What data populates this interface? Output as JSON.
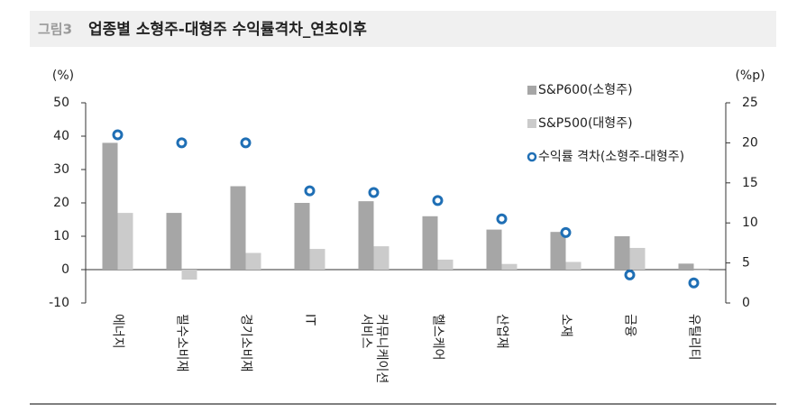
{
  "chart_data": {
    "type": "bar_line",
    "figure_label": "그림3",
    "title": "업종별 소형주-대형주 수익률격차_연초이후",
    "y_label": "(%)",
    "y2_label": "(%p)",
    "categories": [
      "에너지",
      "필수소비재",
      "경기소비재",
      "IT",
      "커뮤니케이션 서비스",
      "헬스케어",
      "산업재",
      "소재",
      "금융",
      "유틸리티"
    ],
    "series": [
      {
        "name": "S&P600(소형주)",
        "color": "#a6a6a6",
        "kind": "bar",
        "values": [
          38,
          17,
          25,
          20,
          20.5,
          16,
          12,
          11.3,
          10,
          1.8
        ]
      },
      {
        "name": "S&P500(대형주)",
        "color": "#cbcbcb",
        "kind": "bar",
        "values": [
          17,
          -3,
          5,
          6.2,
          7,
          3,
          1.7,
          2.3,
          6.5,
          -0.3
        ]
      },
      {
        "name": "수익률 격차(소형주-대형주)",
        "color": "#1f6fb5",
        "kind": "marker",
        "axis": "y2",
        "values": [
          21,
          20,
          20,
          14,
          13.8,
          12.8,
          10.5,
          8.8,
          3.5,
          2.5
        ]
      }
    ],
    "ylim": [
      -10,
      50
    ],
    "yticks": [
      -10,
      0,
      10,
      20,
      30,
      40,
      50
    ],
    "y2lim": [
      0,
      25
    ],
    "y2ticks": [
      0,
      5,
      10,
      15,
      20,
      25
    ],
    "legend": "top-right"
  }
}
